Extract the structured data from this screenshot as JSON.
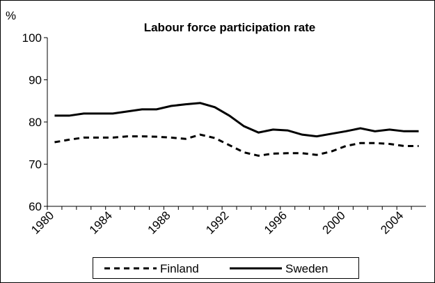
{
  "chart_data": {
    "type": "line",
    "title": "Labour force participation rate",
    "y_label": "%",
    "categories": [
      "1980",
      null,
      null,
      null,
      "1984",
      null,
      null,
      null,
      "1988",
      null,
      null,
      null,
      "1992",
      null,
      null,
      null,
      "1996",
      null,
      null,
      null,
      "2000",
      null,
      null,
      null,
      "2004",
      null
    ],
    "series": [
      {
        "name": "Finland",
        "color": "#000000",
        "dash": "dashed",
        "values": [
          75.2,
          75.8,
          76.3,
          76.3,
          76.3,
          76.6,
          76.6,
          76.5,
          76.3,
          76.0,
          77.0,
          76.2,
          74.5,
          72.8,
          72.0,
          72.5,
          72.6,
          72.6,
          72.2,
          73.0,
          74.3,
          75.0,
          75.0,
          74.8,
          74.3,
          74.3
        ]
      },
      {
        "name": "Sweden",
        "color": "#000000",
        "dash": "solid",
        "values": [
          81.5,
          81.5,
          82.0,
          82.0,
          82.0,
          82.5,
          83.0,
          83.0,
          83.8,
          84.2,
          84.5,
          83.5,
          81.5,
          79.0,
          77.5,
          78.2,
          78.0,
          77.0,
          76.6,
          77.2,
          77.8,
          78.5,
          77.8,
          78.2,
          77.8,
          77.8
        ]
      }
    ],
    "ylim": [
      60,
      100
    ],
    "yticks": [
      60,
      70,
      80,
      90,
      100
    ],
    "grid": false,
    "legend": "bottom"
  }
}
